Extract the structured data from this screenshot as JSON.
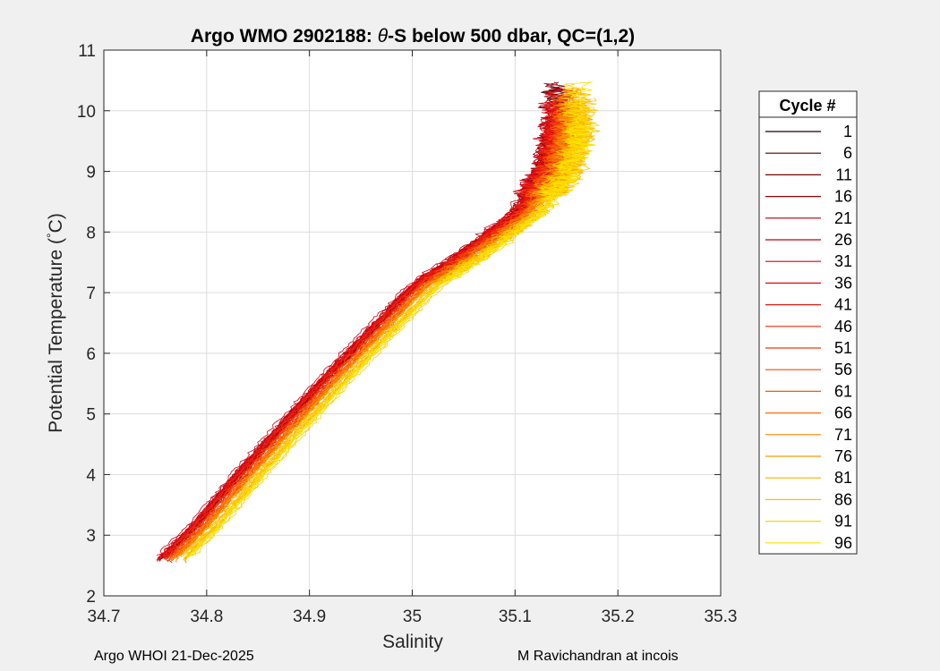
{
  "figure": {
    "background": "#f0f0f0",
    "footer_left": "Argo WHOI 21-Dec-2025",
    "footer_right": "M Ravichandran at incois"
  },
  "chart_data": {
    "type": "line",
    "title_parts": [
      "Argo WMO 2902188: ",
      "θ",
      "-S below 500 dbar,  QC=(1,2)"
    ],
    "xlabel": "Salinity",
    "ylabel_parts": [
      "Potential Temperature (",
      "°",
      "C)"
    ],
    "xlim": [
      34.7,
      35.3
    ],
    "ylim": [
      2,
      11
    ],
    "xticks": [
      34.7,
      34.8,
      34.9,
      35.0,
      35.1,
      35.2,
      35.3
    ],
    "xtick_labels": [
      "34.7",
      "34.8",
      "34.9",
      "35",
      "35.1",
      "35.2",
      "35.3"
    ],
    "yticks": [
      2,
      3,
      4,
      5,
      6,
      7,
      8,
      9,
      10,
      11
    ],
    "ytick_labels": [
      "2",
      "3",
      "4",
      "5",
      "6",
      "7",
      "8",
      "9",
      "10",
      "11"
    ],
    "grid": true,
    "legend": {
      "title": "Cycle #",
      "position": "outside-right",
      "entries": [
        "1",
        "6",
        "11",
        "16",
        "21",
        "26",
        "31",
        "36",
        "41",
        "46",
        "51",
        "56",
        "61",
        "66",
        "71",
        "76",
        "81",
        "86",
        "91",
        "96"
      ],
      "colors": [
        "#1f0000",
        "#4a0000",
        "#740000",
        "#940006",
        "#aa000d",
        "#bf0010",
        "#d20012",
        "#e20812",
        "#e81810",
        "#ec280e",
        "#f0380c",
        "#f3480a",
        "#f55a08",
        "#f76e06",
        "#f88404",
        "#f99a03",
        "#faae02",
        "#fbc202",
        "#fcd401",
        "#fde400"
      ]
    },
    "mean_profile": {
      "salinity": [
        34.765,
        34.8,
        34.84,
        34.885,
        34.925,
        34.97,
        35.01,
        35.055,
        35.11,
        35.14,
        35.15,
        35.15
      ],
      "temperature": [
        2.6,
        3.2,
        4.0,
        4.85,
        5.6,
        6.4,
        7.1,
        7.6,
        8.3,
        9.0,
        9.6,
        10.1
      ]
    },
    "series": [
      {
        "name": "1",
        "color": "#1f0000",
        "salinity_offset": -0.005
      },
      {
        "name": "6",
        "color": "#4a0000",
        "salinity_offset": -0.008
      },
      {
        "name": "11",
        "color": "#740000",
        "salinity_offset": -0.006
      },
      {
        "name": "16",
        "color": "#940006",
        "salinity_offset": -0.01
      },
      {
        "name": "21",
        "color": "#aa000d",
        "salinity_offset": -0.004
      },
      {
        "name": "26",
        "color": "#bf0010",
        "salinity_offset": -0.009
      },
      {
        "name": "31",
        "color": "#d20012",
        "salinity_offset": -0.011
      },
      {
        "name": "36",
        "color": "#e20812",
        "salinity_offset": -0.007
      },
      {
        "name": "41",
        "color": "#e81810",
        "salinity_offset": -0.006
      },
      {
        "name": "46",
        "color": "#ec280e",
        "salinity_offset": -0.004
      },
      {
        "name": "51",
        "color": "#f0380c",
        "salinity_offset": -0.002
      },
      {
        "name": "56",
        "color": "#f3480a",
        "salinity_offset": 0.0
      },
      {
        "name": "61",
        "color": "#f55a08",
        "salinity_offset": 0.002
      },
      {
        "name": "66",
        "color": "#f76e06",
        "salinity_offset": 0.004
      },
      {
        "name": "71",
        "color": "#f88404",
        "salinity_offset": 0.006
      },
      {
        "name": "76",
        "color": "#f99a03",
        "salinity_offset": 0.008
      },
      {
        "name": "81",
        "color": "#faae02",
        "salinity_offset": 0.01
      },
      {
        "name": "86",
        "color": "#fbc202",
        "salinity_offset": 0.012
      },
      {
        "name": "91",
        "color": "#fcd401",
        "salinity_offset": 0.014
      },
      {
        "name": "96",
        "color": "#fde400",
        "salinity_offset": 0.016
      }
    ]
  }
}
